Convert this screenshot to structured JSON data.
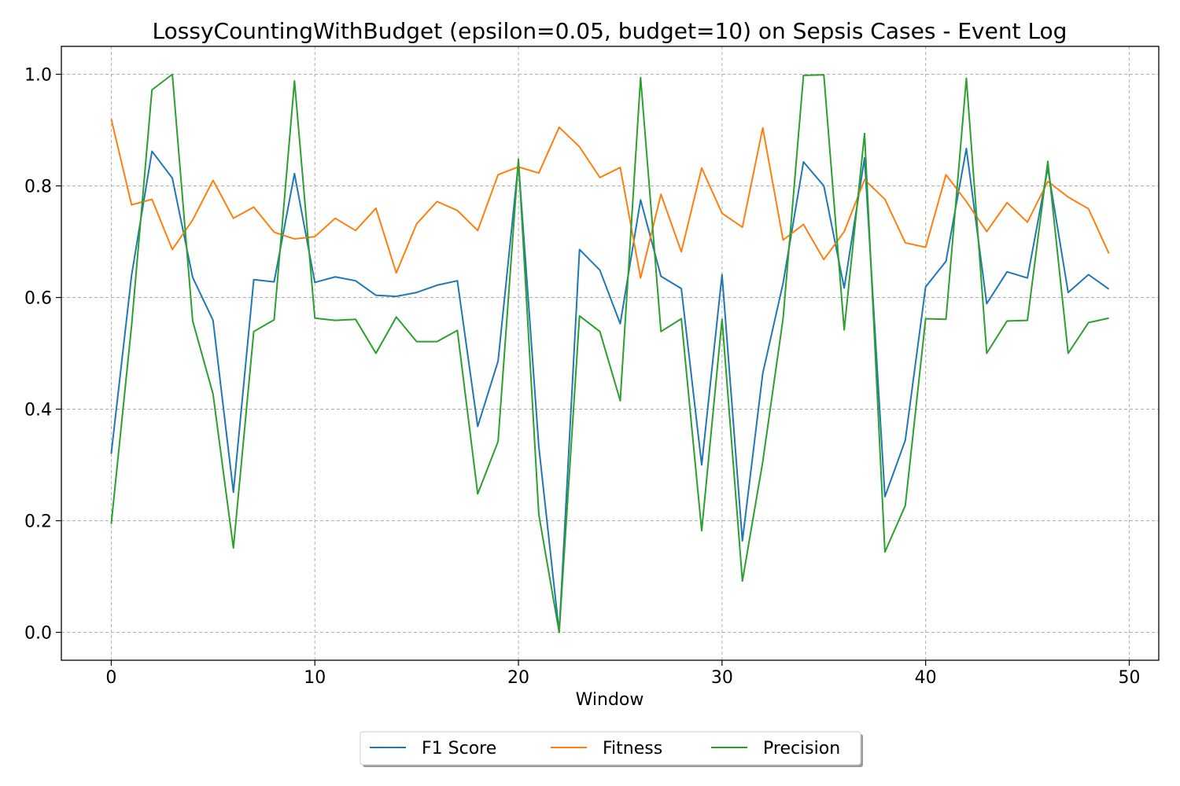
{
  "chart_data": {
    "type": "line",
    "title": "LossyCountingWithBudget (epsilon=0.05, budget=10) on Sepsis Cases - Event Log",
    "xlabel": "Window",
    "ylabel": "",
    "xlim": [
      -2.45,
      51.45
    ],
    "ylim": [
      -0.05,
      1.05
    ],
    "xticks": [
      0,
      10,
      20,
      30,
      40,
      50
    ],
    "yticks": [
      0.0,
      0.2,
      0.4,
      0.6,
      0.8,
      1.0
    ],
    "xtick_labels": [
      "0",
      "10",
      "20",
      "30",
      "40",
      "50"
    ],
    "ytick_labels": [
      "0.0",
      "0.2",
      "0.4",
      "0.6",
      "0.8",
      "1.0"
    ],
    "grid": true,
    "legend_position": "bottom-center",
    "x": [
      0,
      1,
      2,
      3,
      4,
      5,
      6,
      7,
      8,
      9,
      10,
      11,
      12,
      13,
      14,
      15,
      16,
      17,
      18,
      19,
      20,
      21,
      22,
      23,
      24,
      25,
      26,
      27,
      28,
      29,
      30,
      31,
      32,
      33,
      34,
      35,
      36,
      37,
      38,
      39,
      40,
      41,
      42,
      43,
      44,
      45,
      46,
      47,
      48,
      49
    ],
    "series": [
      {
        "name": "F1 Score",
        "color": "#1f77b4",
        "values": [
          0.32,
          0.64,
          0.862,
          0.814,
          0.636,
          0.559,
          0.251,
          0.632,
          0.628,
          0.822,
          0.627,
          0.637,
          0.63,
          0.604,
          0.602,
          0.609,
          0.622,
          0.63,
          0.369,
          0.486,
          0.842,
          0.333,
          0.0,
          0.686,
          0.649,
          0.553,
          0.775,
          0.638,
          0.616,
          0.3,
          0.641,
          0.164,
          0.464,
          0.626,
          0.843,
          0.8,
          0.617,
          0.85,
          0.243,
          0.344,
          0.619,
          0.665,
          0.867,
          0.589,
          0.646,
          0.635,
          0.832,
          0.609,
          0.641,
          0.615
        ]
      },
      {
        "name": "Fitness",
        "color": "#ff7f0e",
        "values": [
          0.92,
          0.766,
          0.776,
          0.686,
          0.739,
          0.81,
          0.742,
          0.762,
          0.717,
          0.705,
          0.709,
          0.742,
          0.72,
          0.76,
          0.644,
          0.732,
          0.772,
          0.756,
          0.72,
          0.82,
          0.834,
          0.823,
          0.905,
          0.87,
          0.815,
          0.833,
          0.635,
          0.785,
          0.682,
          0.832,
          0.751,
          0.726,
          0.904,
          0.703,
          0.731,
          0.668,
          0.718,
          0.811,
          0.776,
          0.698,
          0.69,
          0.82,
          0.772,
          0.718,
          0.77,
          0.735,
          0.808,
          0.78,
          0.759,
          0.679
        ]
      },
      {
        "name": "Precision",
        "color": "#2ca02c",
        "values": [
          0.194,
          0.55,
          0.972,
          1.0,
          0.558,
          0.427,
          0.151,
          0.539,
          0.56,
          0.988,
          0.563,
          0.559,
          0.561,
          0.5,
          0.565,
          0.521,
          0.521,
          0.541,
          0.248,
          0.342,
          0.848,
          0.211,
          0.0,
          0.567,
          0.539,
          0.415,
          0.994,
          0.539,
          0.562,
          0.182,
          0.561,
          0.092,
          0.306,
          0.563,
          0.998,
          0.999,
          0.542,
          0.894,
          0.144,
          0.227,
          0.562,
          0.561,
          0.993,
          0.5,
          0.558,
          0.559,
          0.844,
          0.5,
          0.555,
          0.563
        ]
      }
    ]
  }
}
